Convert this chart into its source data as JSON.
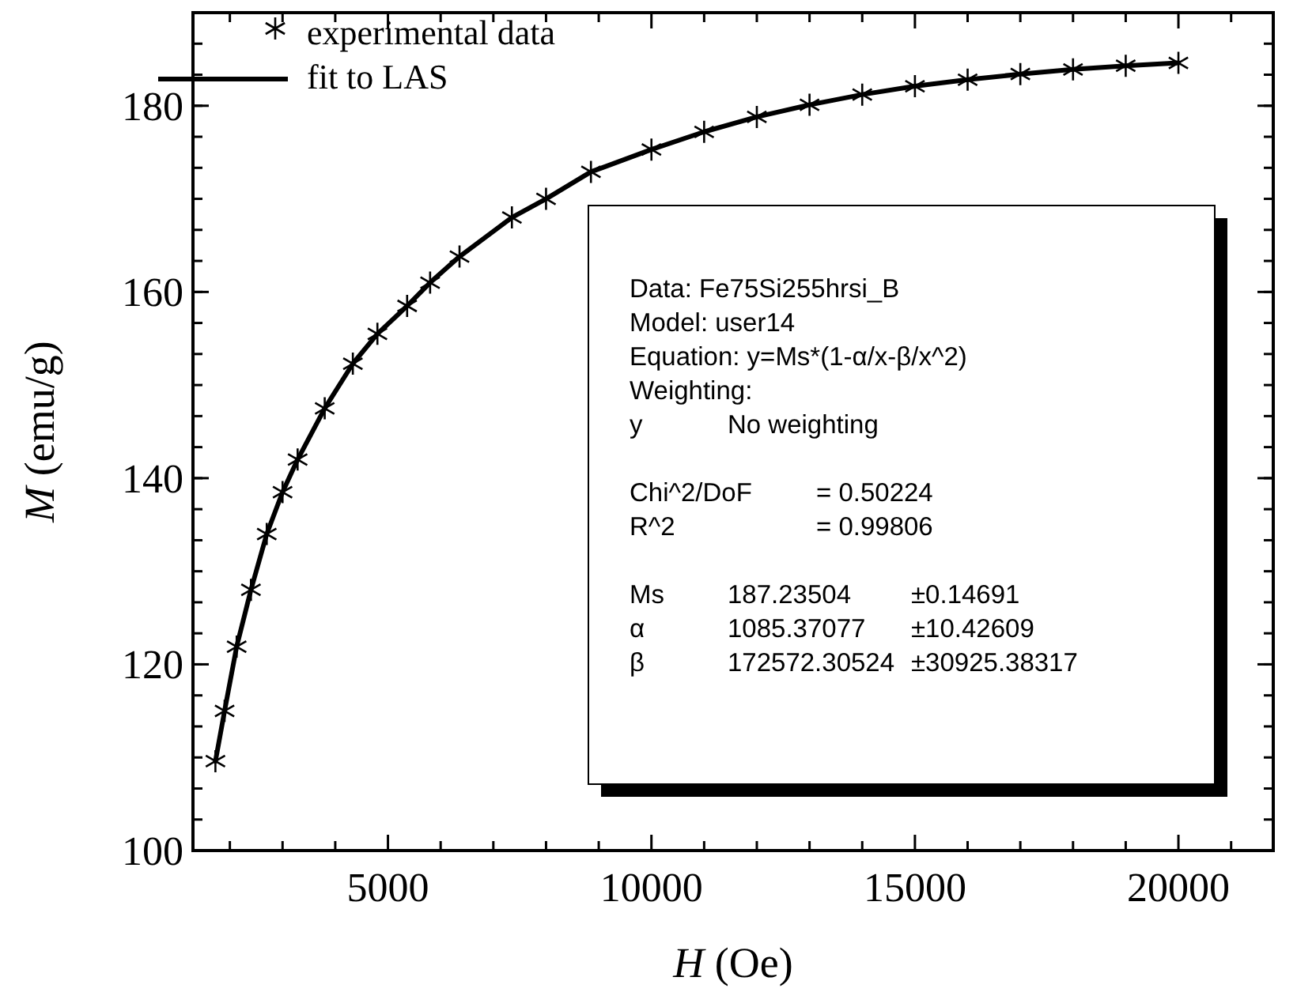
{
  "chart_data": {
    "type": "scatter",
    "xlabel": "H (Oe)",
    "ylabel": "M (emu/g)",
    "xlim": [
      1300,
      21800
    ],
    "ylim": [
      100,
      190
    ],
    "xticks": [
      {
        "value": 2000,
        "label": null
      },
      {
        "value": 3000,
        "label": null
      },
      {
        "value": 4000,
        "label": null
      },
      5000,
      {
        "value": 6000,
        "label": null
      },
      {
        "value": 7000,
        "label": null
      },
      {
        "value": 8000,
        "label": null
      },
      {
        "value": 9000,
        "label": null
      },
      10000,
      {
        "value": 11000,
        "label": null
      },
      {
        "value": 12000,
        "label": null
      },
      {
        "value": 13000,
        "label": null
      },
      {
        "value": 14000,
        "label": null
      },
      15000,
      {
        "value": 16000,
        "label": null
      },
      {
        "value": 17000,
        "label": null
      },
      {
        "value": 18000,
        "label": null
      },
      {
        "value": 19000,
        "label": null
      },
      20000,
      {
        "value": 21000,
        "label": null
      }
    ],
    "yticks": [
      100,
      120,
      140,
      160,
      180
    ],
    "legend": "top left",
    "grid": false,
    "series": [
      {
        "name": "experimental data",
        "type": "scatter",
        "marker": "cross",
        "color": "#000000",
        "x": [
          1726,
          1900,
          2129,
          2400,
          2700,
          3000,
          3286,
          3800,
          4334,
          4800,
          5364,
          5800,
          6358,
          7352,
          8000,
          8852,
          10000,
          11000,
          12000,
          13000,
          14000,
          15000,
          16000,
          17000,
          18000,
          19000,
          20000
        ],
        "values": [
          109.6,
          115,
          121.9,
          128,
          134,
          138.5,
          142,
          147.5,
          152.3,
          155.5,
          158.5,
          161,
          163.8,
          168,
          170,
          172.9,
          175.3,
          177.2,
          178.8,
          180.1,
          181.2,
          182.1,
          182.8,
          183.4,
          183.9,
          184.3,
          184.6
        ]
      },
      {
        "name": "fit to LAS",
        "type": "line",
        "line_style": "solid",
        "color": "#000000",
        "x": [
          1726,
          1900,
          2129,
          2400,
          2700,
          3000,
          3286,
          3800,
          4334,
          4800,
          5364,
          5800,
          6358,
          7352,
          8000,
          8852,
          10000,
          11000,
          12000,
          13000,
          14000,
          15000,
          16000,
          17000,
          18000,
          19000,
          20000
        ],
        "values": [
          109.6,
          115,
          121.9,
          128,
          134,
          138.5,
          142,
          147.5,
          152.3,
          155.5,
          158.5,
          161,
          163.8,
          168,
          170,
          172.9,
          175.3,
          177.2,
          178.8,
          180.1,
          181.2,
          182.1,
          182.8,
          183.4,
          183.9,
          184.3,
          184.6
        ]
      }
    ],
    "annotations": [
      "Data: Fe75Si255hrsi_B",
      "Model: user14",
      "Equation: y=Ms*(1-α/x-β/x^2)",
      "Weighting:",
      "y\tNo weighting",
      "Chi^2/DoF\t= 0.50224",
      "R^2\t=  0.99806",
      "Ms\t187.23504\t±0.14691",
      "α\t1085.37077\t±10.42609",
      "β\t172572.30524\t±30925.38317"
    ]
  }
}
